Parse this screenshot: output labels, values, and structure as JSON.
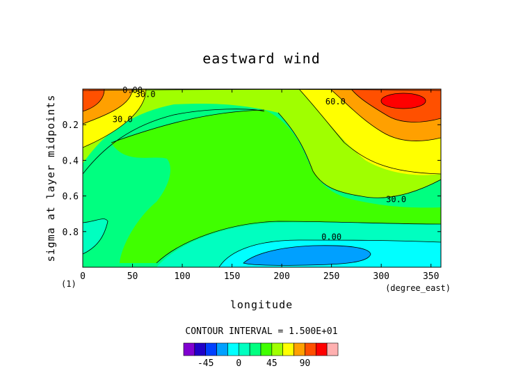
{
  "chart_data": {
    "type": "heatmap",
    "title": "eastward wind",
    "xlabel": "longitude",
    "ylabel": "sigma at layer midpoints",
    "x_unit": "(degree_east)",
    "corner_label": "(1)",
    "xlim": [
      0,
      360
    ],
    "ylim": [
      1.0,
      0.0
    ],
    "x_ticks": [
      0,
      50,
      100,
      150,
      200,
      250,
      300,
      350
    ],
    "y_ticks": [
      0.2,
      0.4,
      0.6,
      0.8
    ],
    "x_tick_labels": [
      "0",
      "50",
      "100",
      "150",
      "200",
      "250",
      "300",
      "350"
    ],
    "y_tick_labels": [
      "0.2",
      "0.4",
      "0.6",
      "0.8"
    ],
    "contour_interval_text": "CONTOUR INTERVAL = 1.500E+01",
    "contour_labels": [
      {
        "text": "0.00",
        "x": 50,
        "y": 0.005
      },
      {
        "text": "30.0",
        "x": 63,
        "y": 0.03
      },
      {
        "text": "30.0",
        "x": 40,
        "y": 0.17
      },
      {
        "text": "60.0",
        "x": 254,
        "y": 0.07
      },
      {
        "text": "30.0",
        "x": 315,
        "y": 0.62
      },
      {
        "text": "0.00",
        "x": 250,
        "y": 0.83
      }
    ],
    "levels": [
      -60,
      -45,
      -30,
      -15,
      0,
      15,
      30,
      45,
      60,
      75,
      90,
      105
    ],
    "colorbar_tick_labels": [
      "-45",
      "0",
      "45",
      "90"
    ],
    "colorbar_tick_values": [
      -45,
      0,
      45,
      90
    ],
    "colormap": [
      "#8000d0",
      "#2000c8",
      "#0040ff",
      "#00a0ff",
      "#00ffff",
      "#00ffc0",
      "#00ff80",
      "#40ff00",
      "#a0ff00",
      "#ffff00",
      "#ffa000",
      "#ff5000",
      "#ff0000"
    ],
    "regions": [
      {
        "value": 20,
        "color": "#00ff80",
        "x": [
          0,
          360
        ],
        "y": [
          0.0,
          1.0
        ]
      },
      {
        "value": 10,
        "color": "#00ffc0",
        "x": [
          0,
          360
        ],
        "y": [
          0.73,
          1.0
        ]
      },
      {
        "value": -5,
        "color": "#00ffff",
        "x": [
          150,
          360
        ],
        "y": [
          0.82,
          1.0
        ]
      },
      {
        "value": -20,
        "color": "#00a0ff",
        "x": [
          160,
          290
        ],
        "y": [
          0.87,
          0.98
        ]
      },
      {
        "value": 40,
        "color": "#40ff00",
        "x": [
          40,
          250
        ],
        "y": [
          0.1,
          0.9
        ]
      },
      {
        "value": 50,
        "color": "#a0ff00",
        "x": [
          0,
          360
        ],
        "y": [
          0.0,
          0.6
        ]
      },
      {
        "value": 65,
        "color": "#ffff00",
        "x": [
          220,
          360
        ],
        "y": [
          0.0,
          0.5
        ]
      },
      {
        "value": 80,
        "color": "#ffa000",
        "x": [
          260,
          360
        ],
        "y": [
          0.0,
          0.3
        ]
      },
      {
        "value": 95,
        "color": "#ff5000",
        "x": [
          270,
          360
        ],
        "y": [
          0.0,
          0.2
        ]
      },
      {
        "value": 105,
        "color": "#ff0000",
        "x": [
          300,
          345
        ],
        "y": [
          0.03,
          0.1
        ]
      }
    ]
  }
}
